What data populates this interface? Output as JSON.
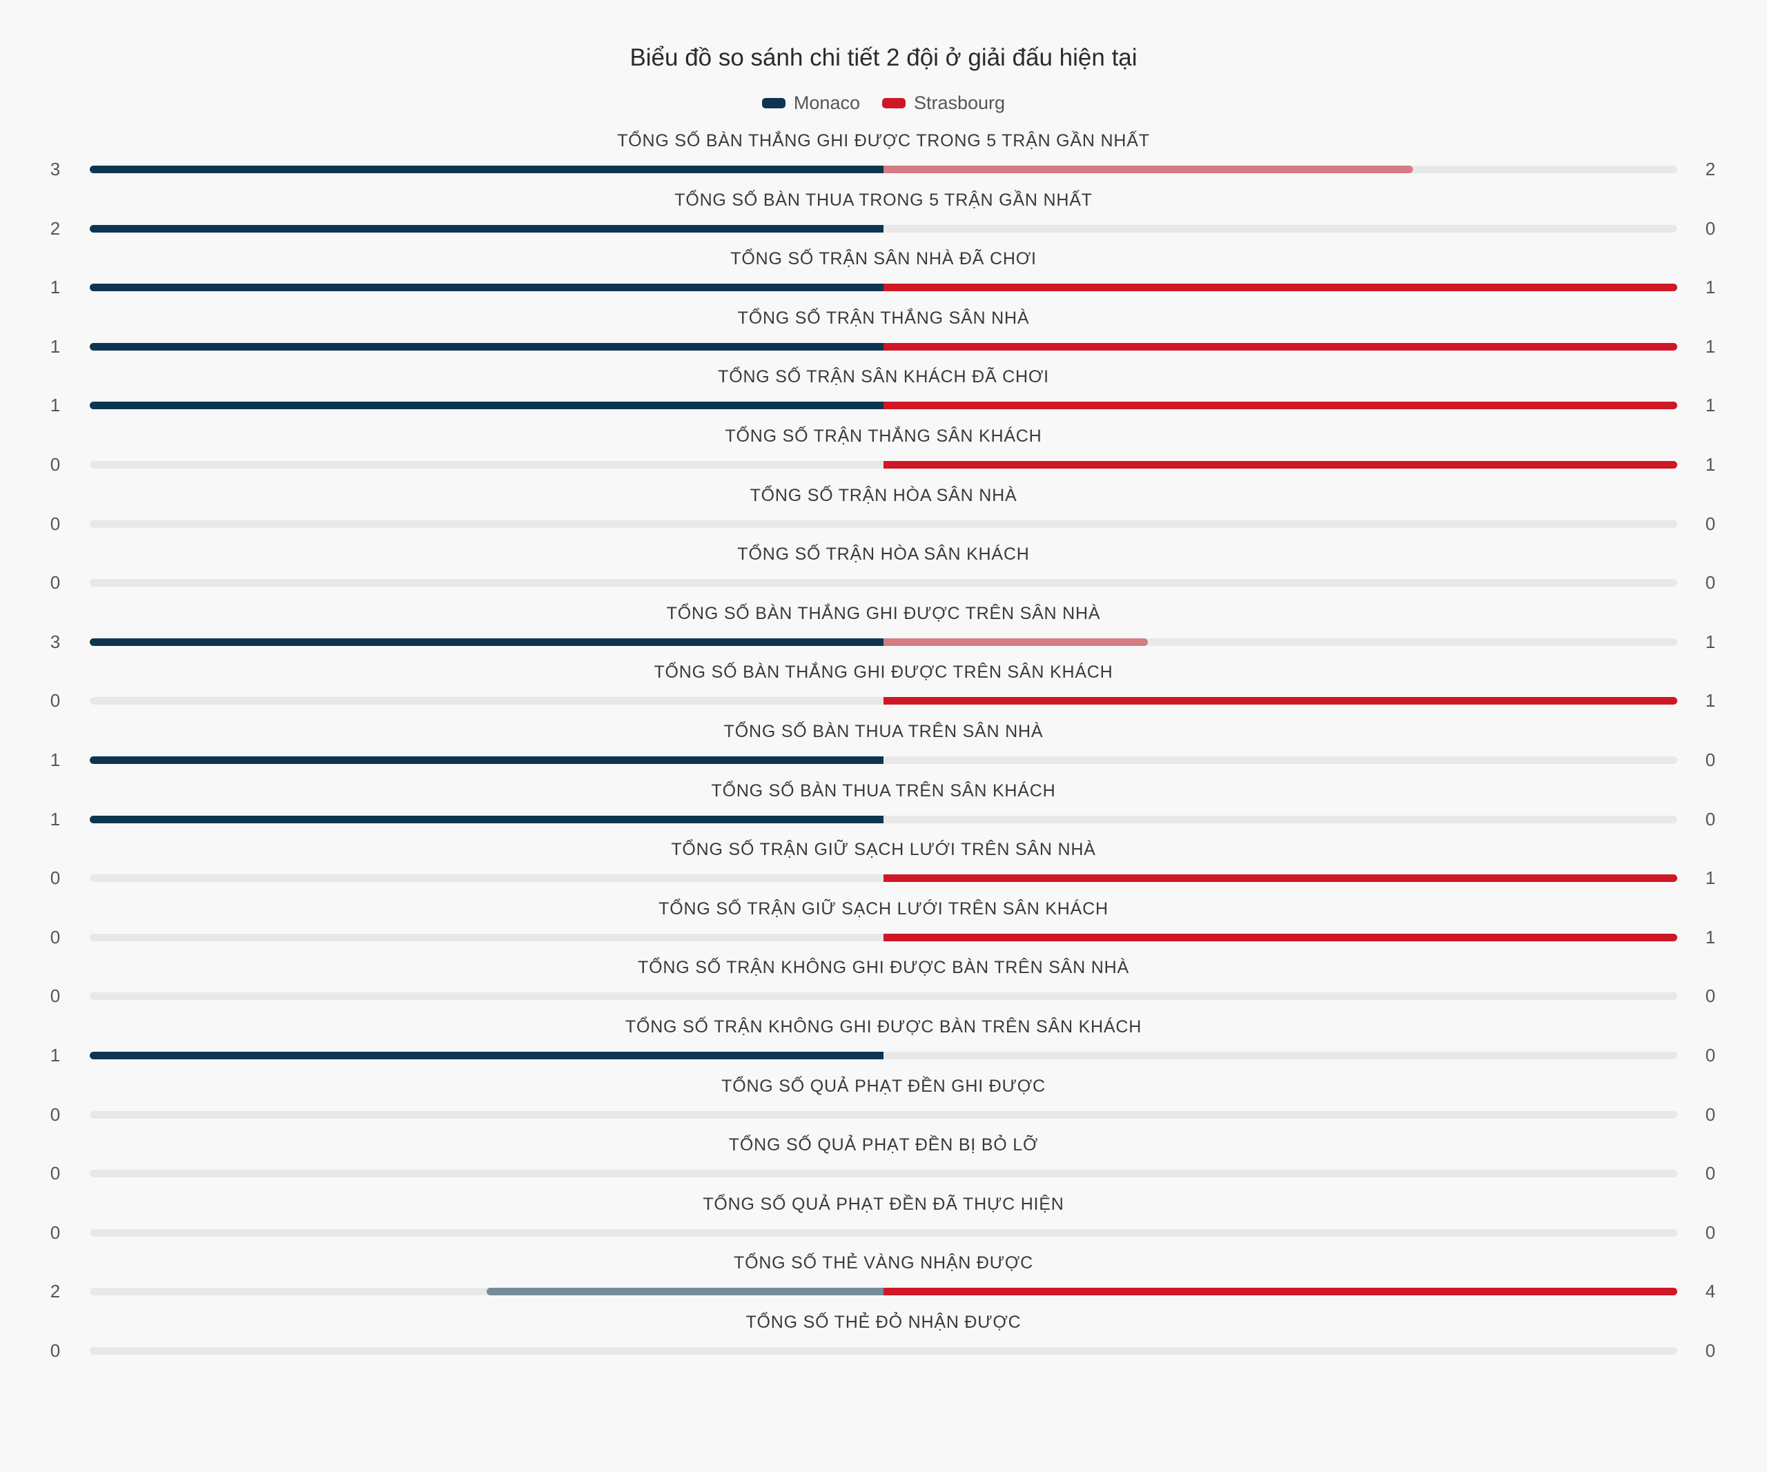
{
  "chart_data": {
    "type": "bar",
    "title": "Biểu đồ so sánh chi tiết 2 đội ở giải đấu hiện tại",
    "legend_placement": "top-center",
    "series": [
      {
        "name": "Monaco",
        "color": "#0e3550",
        "muted_color": "#748c99"
      },
      {
        "name": "Strasbourg",
        "color": "#cf1726",
        "muted_color": "#d37c82"
      }
    ],
    "rows": [
      {
        "label": "TỔNG SỐ BÀN THẮNG GHI ĐƯỢC TRONG 5 TRẬN GẦN NHẤT",
        "left": 3,
        "right": 2
      },
      {
        "label": "TỔNG SỐ BÀN THUA TRONG 5 TRẬN GẦN NHẤT",
        "left": 2,
        "right": 0
      },
      {
        "label": "TỔNG SỐ TRẬN SÂN NHÀ ĐÃ CHƠI",
        "left": 1,
        "right": 1
      },
      {
        "label": "TỔNG SỐ TRẬN THẮNG SÂN NHÀ",
        "left": 1,
        "right": 1
      },
      {
        "label": "TỔNG SỐ TRẬN SÂN KHÁCH ĐÃ CHƠI",
        "left": 1,
        "right": 1
      },
      {
        "label": "TỔNG SỐ TRẬN THẮNG SÂN KHÁCH",
        "left": 0,
        "right": 1
      },
      {
        "label": "TỔNG SỐ TRẬN HÒA SÂN NHÀ",
        "left": 0,
        "right": 0
      },
      {
        "label": "TỔNG SỐ TRẬN HÒA SÂN KHÁCH",
        "left": 0,
        "right": 0
      },
      {
        "label": "TỔNG SỐ BÀN THẮNG GHI ĐƯỢC TRÊN SÂN NHÀ",
        "left": 3,
        "right": 1
      },
      {
        "label": "TỔNG SỐ BÀN THẮNG GHI ĐƯỢC TRÊN SÂN KHÁCH",
        "left": 0,
        "right": 1
      },
      {
        "label": "TỔNG SỐ BÀN THUA TRÊN SÂN NHÀ",
        "left": 1,
        "right": 0
      },
      {
        "label": "TỔNG SỐ BÀN THUA TRÊN SÂN KHÁCH",
        "left": 1,
        "right": 0
      },
      {
        "label": "TỔNG SỐ TRẬN GIỮ SẠCH LƯỚI TRÊN SÂN NHÀ",
        "left": 0,
        "right": 1
      },
      {
        "label": "TỔNG SỐ TRẬN GIỮ SẠCH LƯỚI TRÊN SÂN KHÁCH",
        "left": 0,
        "right": 1
      },
      {
        "label": "TỔNG SỐ TRẬN KHÔNG GHI ĐƯỢC BÀN TRÊN SÂN NHÀ",
        "left": 0,
        "right": 0
      },
      {
        "label": "TỔNG SỐ TRẬN KHÔNG GHI ĐƯỢC BÀN TRÊN SÂN KHÁCH",
        "left": 1,
        "right": 0
      },
      {
        "label": "TỔNG SỐ QUẢ PHẠT ĐỀN GHI ĐƯỢC",
        "left": 0,
        "right": 0
      },
      {
        "label": "TỔNG SỐ QUẢ PHẠT ĐỀN BỊ BỎ LỠ",
        "left": 0,
        "right": 0
      },
      {
        "label": "TỔNG SỐ QUẢ PHẠT ĐỀN ĐÃ THỰC HIỆN",
        "left": 0,
        "right": 0
      },
      {
        "label": "TỔNG SỐ THẺ VÀNG NHẬN ĐƯỢC",
        "left": 2,
        "right": 4
      },
      {
        "label": "TỔNG SỐ THẺ ĐỎ NHẬN ĐƯỢC",
        "left": 0,
        "right": 0
      }
    ]
  }
}
